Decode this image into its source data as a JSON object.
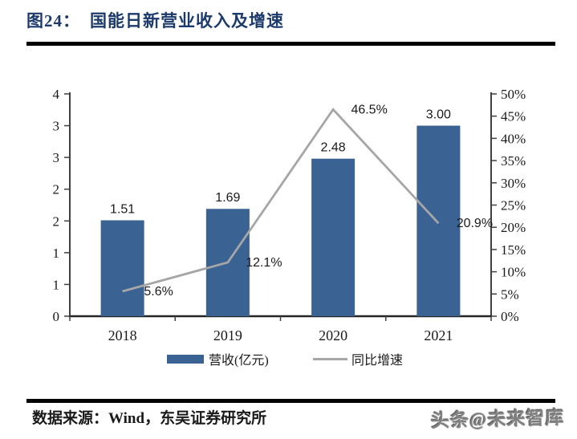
{
  "window": {
    "background": "#ffffff"
  },
  "header": {
    "figure_label": "图24：",
    "title": "国能日新营业收入及增速",
    "title_color": "#1C3A6B"
  },
  "chart_data": {
    "type": "bar",
    "combo": "bar+line dual-axis",
    "title": "国能日新营业收入及增速",
    "categories": [
      "2018",
      "2019",
      "2020",
      "2021"
    ],
    "series": [
      {
        "name": "营收(亿元)",
        "type": "bar",
        "axis": "left",
        "color": "#3A6293",
        "values": [
          1.51,
          1.69,
          2.48,
          3.0
        ],
        "labels": [
          "1.51",
          "1.69",
          "2.48",
          "3.00"
        ]
      },
      {
        "name": "同比增速",
        "type": "line",
        "axis": "right",
        "color": "#A6A6A6",
        "values": [
          5.6,
          12.1,
          46.5,
          20.9
        ],
        "labels": [
          "5.6%",
          "12.1%",
          "46.5%",
          "20.9%"
        ]
      }
    ],
    "left_axis": {
      "range": [
        0,
        3.5
      ],
      "tick_step": 0.5,
      "tick_labels_top_to_bottom": [
        "4",
        "3",
        "3",
        "2",
        "2",
        "1",
        "1",
        "0"
      ]
    },
    "right_axis": {
      "range_percent": [
        0,
        50
      ],
      "tick_step_percent": 5,
      "tick_labels_top_to_bottom": [
        "50%",
        "45%",
        "40%",
        "35%",
        "30%",
        "25%",
        "20%",
        "15%",
        "10%",
        "5%",
        "0%"
      ]
    },
    "grid": false,
    "legend_position": "bottom"
  },
  "legend": {
    "bar_label": "营收(亿元)",
    "line_label": "同比增速"
  },
  "footer": {
    "source": "数据来源：Wind，东吴证券研究所",
    "watermark": "头条@未来智库"
  },
  "colors": {
    "bar": "#3A6293",
    "line": "#A6A6A6",
    "axis": "#404040",
    "x_axis": "#262626",
    "text": "#1a1a1a",
    "rule": "#000000"
  }
}
